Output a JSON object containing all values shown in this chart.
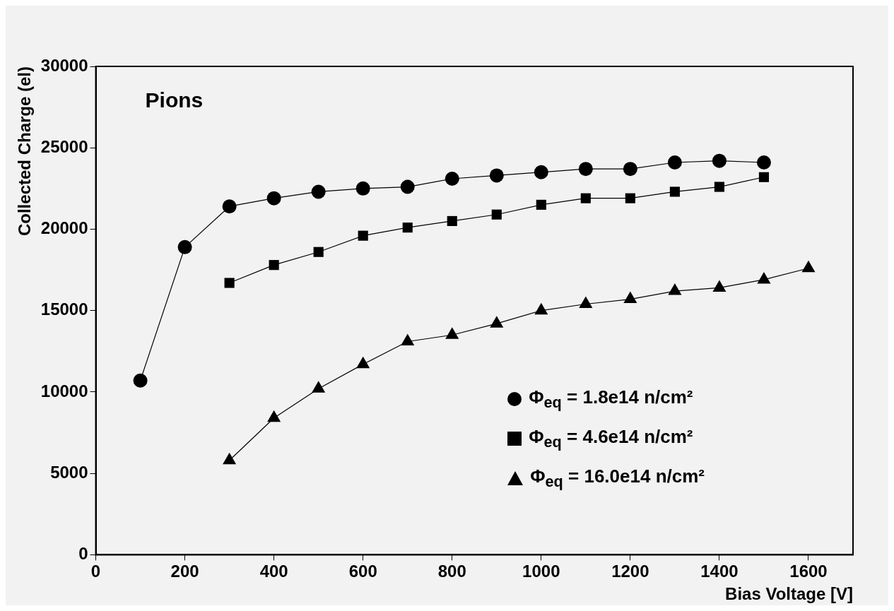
{
  "chart_data": {
    "type": "line",
    "xlabel": "Bias Voltage [V]",
    "ylabel": "Collected Charge (el)",
    "annotations": [
      "Pions"
    ],
    "xlim": [
      0,
      1700
    ],
    "xticks": [
      0,
      200,
      400,
      600,
      800,
      1000,
      1200,
      1400,
      1600
    ],
    "ylim": [
      0,
      30000
    ],
    "yticks": [
      0,
      5000,
      10000,
      15000,
      20000,
      25000,
      30000
    ],
    "grid": false,
    "legend": "bottom right",
    "line_style": "solid",
    "series": [
      {
        "name": "Φ$_{eq}$ = 1.8e14 n/cm²",
        "color": "#000000",
        "marker": "circle",
        "x": [
          100,
          200,
          300,
          400,
          500,
          600,
          700,
          800,
          900,
          1000,
          1100,
          1200,
          1300,
          1400,
          1500
        ],
        "values": [
          10700,
          18900,
          21400,
          21900,
          22300,
          22500,
          22600,
          23100,
          23300,
          23500,
          23700,
          23700,
          24100,
          24200,
          24100
        ]
      },
      {
        "name": "Φ$_{eq}$ = 4.6e14 n/cm²",
        "color": "#000000",
        "marker": "square",
        "x": [
          300,
          400,
          500,
          600,
          700,
          800,
          900,
          1000,
          1100,
          1200,
          1300,
          1400,
          1500
        ],
        "values": [
          16700,
          17800,
          18600,
          19600,
          20100,
          20500,
          20900,
          21500,
          21900,
          21900,
          22300,
          22600,
          23200
        ]
      },
      {
        "name": "Φ$_{eq}$ = 16.0e14 n/cm²",
        "color": "#000000",
        "marker": "triangle",
        "x": [
          300,
          400,
          500,
          600,
          700,
          800,
          900,
          1000,
          1100,
          1200,
          1300,
          1400,
          1500,
          1600
        ],
        "values": [
          5800,
          8400,
          10200,
          11700,
          13100,
          13500,
          14200,
          15000,
          15400,
          15700,
          16200,
          16400,
          16900,
          17600
        ]
      }
    ]
  }
}
